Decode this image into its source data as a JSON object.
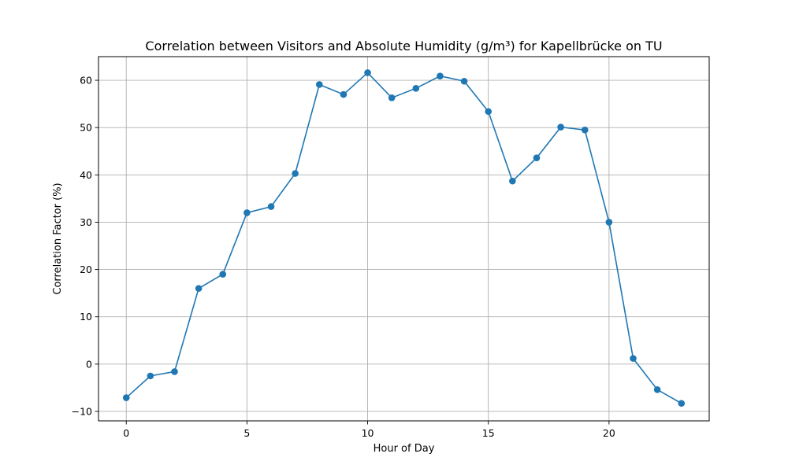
{
  "chart_data": {
    "type": "line",
    "title": "Correlation between Visitors and Absolute Humidity (g/m³) for Kapellbrücke on TU",
    "xlabel": "Hour of Day",
    "ylabel": "Correlation Factor (%)",
    "xlim": [
      -1.15,
      24.15
    ],
    "ylim": [
      -12,
      65
    ],
    "xticks": [
      0,
      5,
      10,
      15,
      20
    ],
    "yticks": [
      -10,
      0,
      10,
      20,
      30,
      40,
      50,
      60
    ],
    "grid": true,
    "series": [
      {
        "color": "#1f77b4",
        "marker": "circle",
        "x": [
          0,
          1,
          2,
          3,
          4,
          5,
          6,
          7,
          8,
          9,
          10,
          11,
          12,
          13,
          14,
          15,
          16,
          17,
          18,
          19,
          20,
          21,
          22,
          23
        ],
        "values": [
          -7.1,
          -2.5,
          -1.6,
          16.0,
          19.0,
          32.0,
          33.3,
          40.3,
          59.1,
          57.0,
          61.6,
          56.3,
          58.3,
          60.9,
          59.8,
          53.4,
          38.7,
          43.6,
          50.1,
          49.5,
          30.0,
          1.2,
          -5.4,
          -8.3
        ]
      }
    ]
  }
}
